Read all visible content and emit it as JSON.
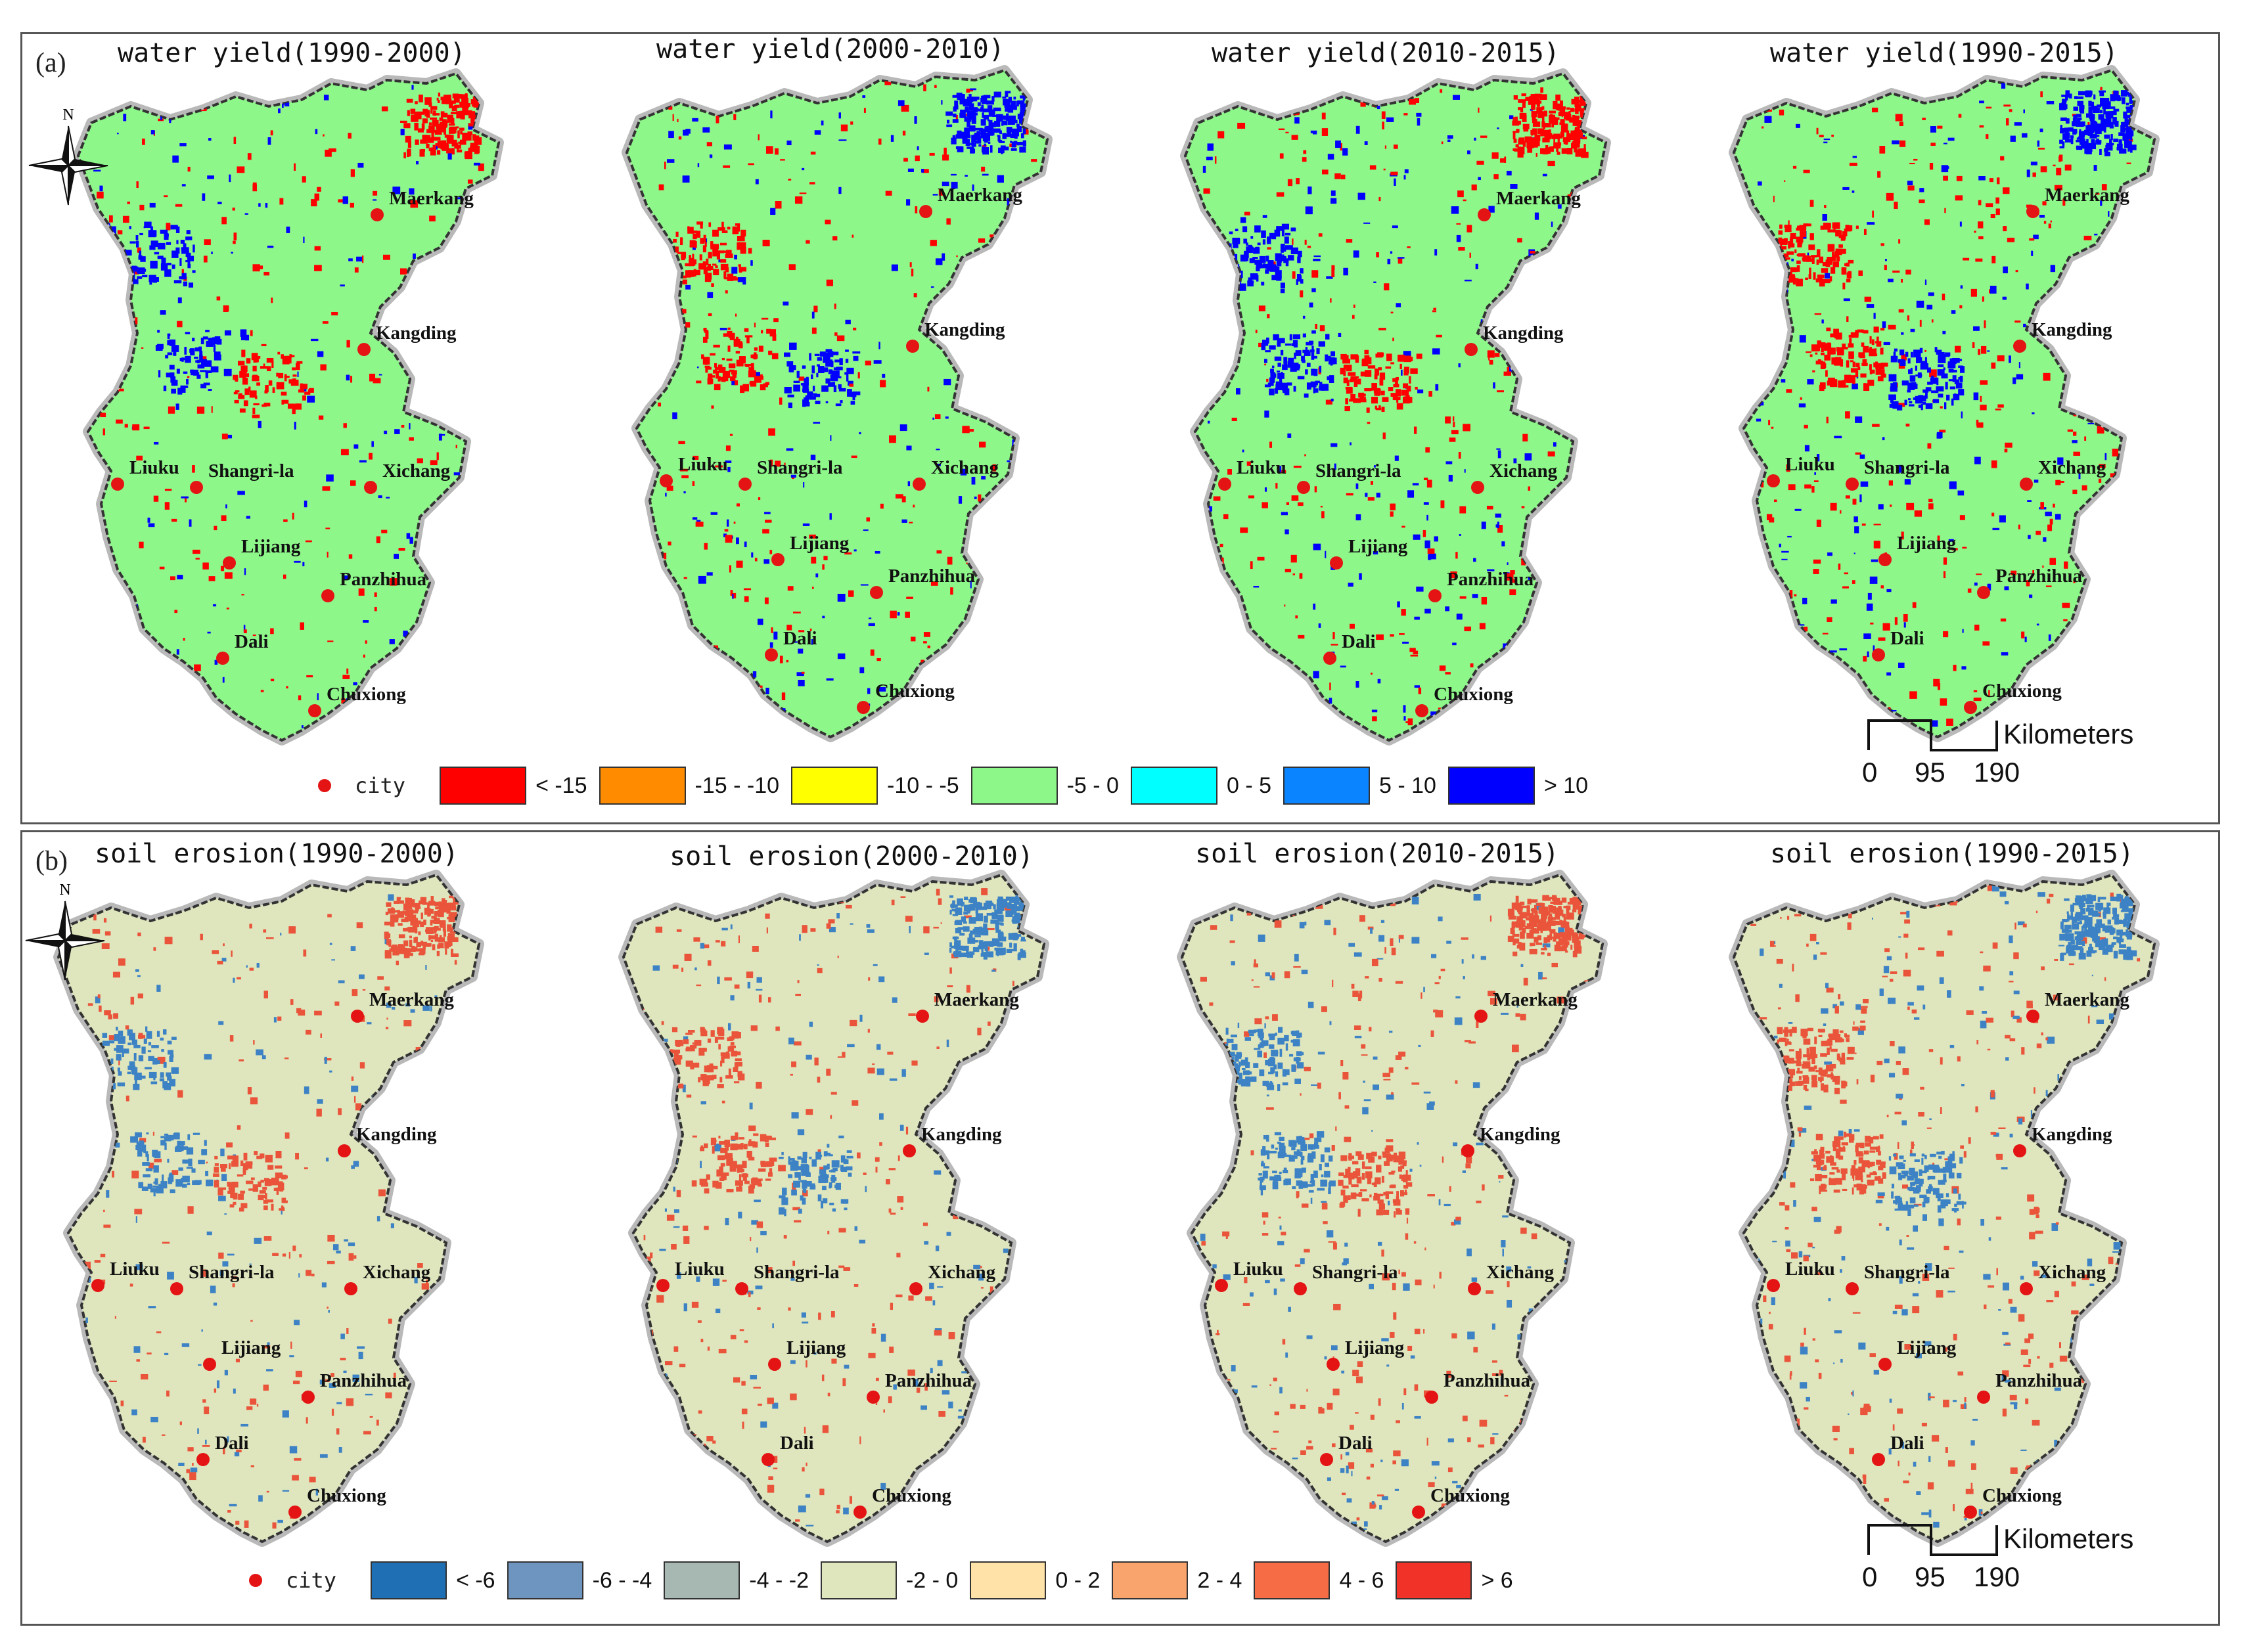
{
  "panels": [
    {
      "label": "(a)",
      "maps": [
        {
          "title": "water yield(1990-2000)"
        },
        {
          "title": "water yield(2000-2010)"
        },
        {
          "title": "water yield(2010-2015)"
        },
        {
          "title": "water yield(1990-2015)"
        }
      ],
      "legend": {
        "city_label": "city",
        "classes": [
          {
            "label": "< -15",
            "color": "#ff0000"
          },
          {
            "label": "-15 - -10",
            "color": "#ff8c00"
          },
          {
            "label": "-10 - -5",
            "color": "#ffff00"
          },
          {
            "label": "-5 - 0",
            "color": "#8ef78a"
          },
          {
            "label": "0 - 5",
            "color": "#00ffff"
          },
          {
            "label": "5 - 10",
            "color": "#0a84ff"
          },
          {
            "label": "> 10",
            "color": "#0000ff"
          }
        ]
      },
      "background_color": "#8ef78a",
      "patch_colors": [
        "#ff0000",
        "#0000ff"
      ]
    },
    {
      "label": "(b)",
      "maps": [
        {
          "title": "soil erosion(1990-2000)"
        },
        {
          "title": "soil erosion(2000-2010)"
        },
        {
          "title": "soil erosion(2010-2015)"
        },
        {
          "title": "soil erosion(1990-2015)"
        }
      ],
      "legend": {
        "city_label": "city",
        "classes": [
          {
            "label": "< -6",
            "color": "#1f6fb5"
          },
          {
            "label": "-6 - -4",
            "color": "#6d95bf"
          },
          {
            "label": "-4 - -2",
            "color": "#a7b8b3"
          },
          {
            "label": "-2 - 0",
            "color": "#dfe6bd"
          },
          {
            "label": "0 - 2",
            "color": "#ffe2a8"
          },
          {
            "label": "2 - 4",
            "color": "#f9a46d"
          },
          {
            "label": "4 - 6",
            "color": "#f56c45"
          },
          {
            "label": "> 6",
            "color": "#f03228"
          }
        ]
      },
      "background_color": "#dfe6bd",
      "patch_colors": [
        "#3c82c4",
        "#e9543a"
      ]
    }
  ],
  "cities": [
    "Maerkang",
    "Kangding",
    "Liuku",
    "Shangri-la",
    "Xichang",
    "Lijiang",
    "Panzhihua",
    "Dali",
    "Chuxiong"
  ],
  "north_arrow": {
    "label": "N"
  },
  "scale_bar": {
    "unit": "Kilometers",
    "ticks": [
      "0",
      "95",
      "190"
    ]
  }
}
